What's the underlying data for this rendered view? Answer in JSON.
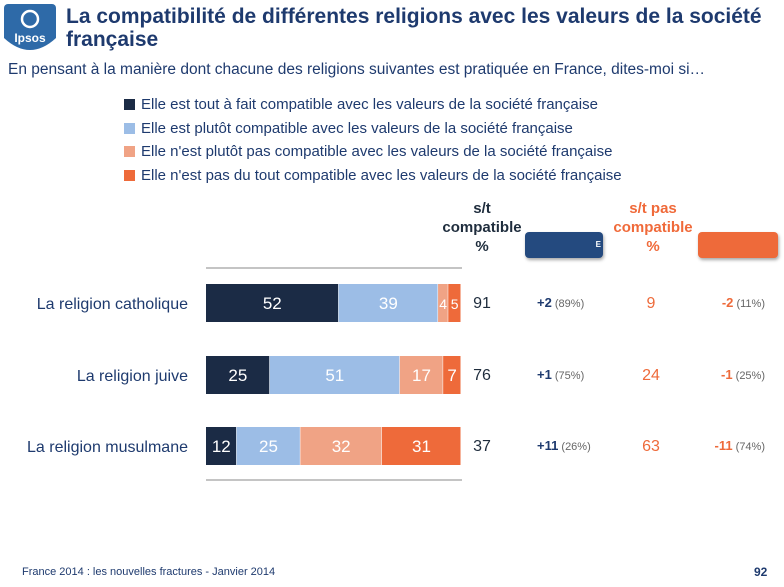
{
  "header": {
    "logo_text": "Ipsos",
    "title": "La compatibilité de différentes religions avec les valeurs de la société française",
    "subtitle": "En pensant à la manière dont chacune des religions suivantes est pratiquée en France, dites-moi si…"
  },
  "columns": {
    "compatible_header": [
      "s/t",
      "compatible",
      "%"
    ],
    "not_compatible_header": [
      "s/t pas",
      "compatible",
      "%"
    ],
    "evolution_badge": "E"
  },
  "colors": {
    "tout_a_fait": "#1b2b45",
    "plutot": "#9cbde6",
    "plutot_pas": "#f0a385",
    "pas_du_tout": "#ee6a3a",
    "brand_blue": "#1e3a6e",
    "evo_blue": "#244a7f"
  },
  "chart_data": {
    "type": "bar",
    "stacked": true,
    "orientation": "horizontal",
    "categories": [
      "La religion catholique",
      "La religion juive",
      "La religion musulmane"
    ],
    "series": [
      {
        "name": "Elle est tout à fait compatible avec les valeurs de la société française",
        "values": [
          52,
          25,
          12
        ],
        "color": "#1b2b45"
      },
      {
        "name": "Elle est plutôt compatible avec les valeurs de la société française",
        "values": [
          39,
          51,
          25
        ],
        "color": "#9cbde6"
      },
      {
        "name": "Elle n'est plutôt pas compatible avec les valeurs de la société française",
        "values": [
          4,
          17,
          32
        ],
        "color": "#f0a385"
      },
      {
        "name": "Elle n'est pas du tout compatible avec les valeurs de la société française",
        "values": [
          5,
          7,
          31
        ],
        "color": "#ee6a3a"
      }
    ],
    "legend_position": "top",
    "compatible_total": [
      91,
      76,
      37
    ],
    "compatible_evolution": [
      {
        "delta": "+2",
        "previous": "(89%)"
      },
      {
        "delta": "+1",
        "previous": "(75%)"
      },
      {
        "delta": "+11",
        "previous": "(26%)"
      }
    ],
    "not_compatible_total": [
      9,
      24,
      63
    ],
    "not_compatible_evolution": [
      {
        "delta": "-2",
        "previous": "(11%)"
      },
      {
        "delta": "-1",
        "previous": "(25%)"
      },
      {
        "delta": "-11",
        "previous": "(74%)"
      }
    ]
  },
  "footer": {
    "source": "France 2014 : les nouvelles fractures - Janvier 2014",
    "page": "92"
  }
}
